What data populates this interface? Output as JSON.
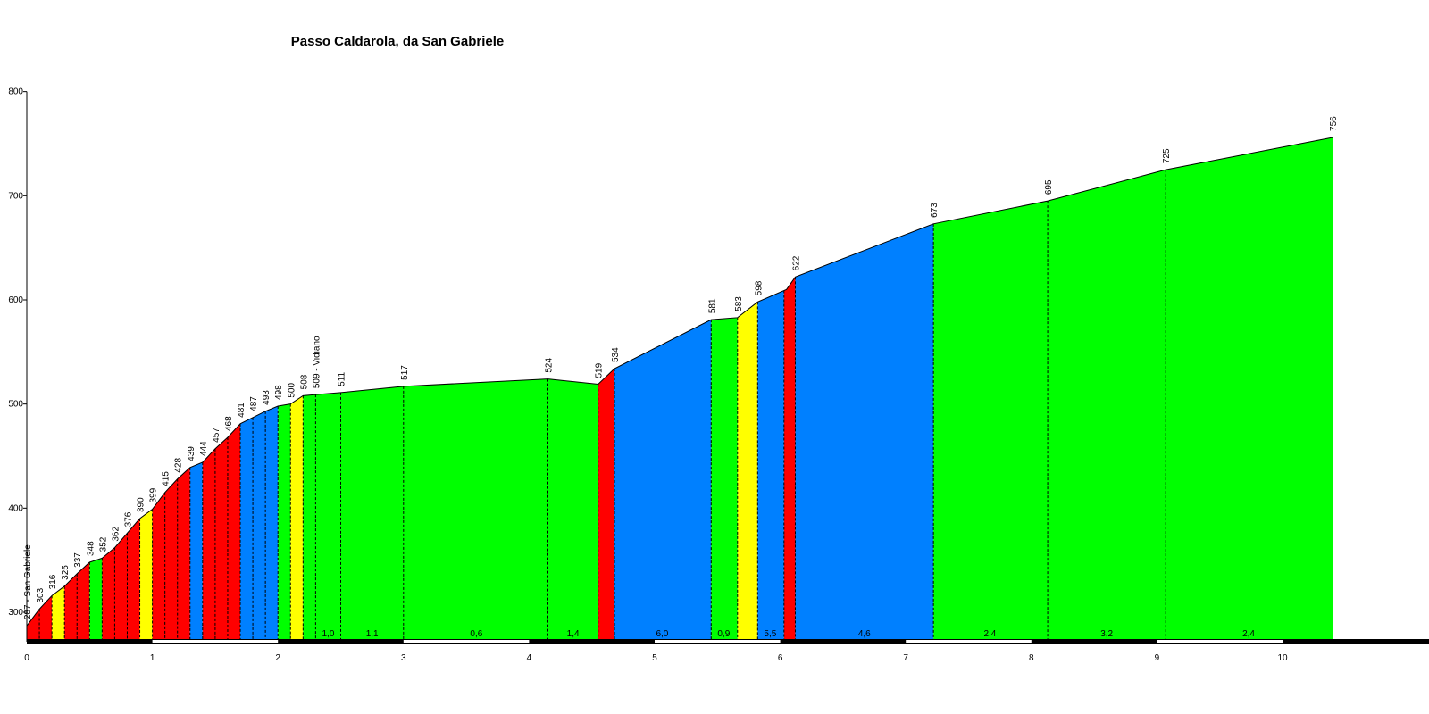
{
  "chart_data": {
    "type": "area",
    "title": "Passo Caldarola, da San Gabriele",
    "xlabel": "",
    "ylabel": "",
    "xlim": [
      0,
      11
    ],
    "ylim": [
      270,
      800
    ],
    "x_ticks": [
      0,
      1,
      2,
      3,
      4,
      5,
      6,
      7,
      8,
      9,
      10
    ],
    "y_ticks": [
      300,
      400,
      500,
      600,
      700,
      800
    ],
    "colors": {
      "red": "#ff0000",
      "yellow": "#ffff00",
      "green": "#00ff00",
      "blue": "#0080ff"
    },
    "profile_points": [
      {
        "x": 0.0,
        "y": 287,
        "label": "287 - San Gabriele"
      },
      {
        "x": 0.1,
        "y": 303,
        "label": "303"
      },
      {
        "x": 0.2,
        "y": 316,
        "label": "316"
      },
      {
        "x": 0.3,
        "y": 325,
        "label": "325"
      },
      {
        "x": 0.4,
        "y": 337,
        "label": "337"
      },
      {
        "x": 0.5,
        "y": 348,
        "label": "348"
      },
      {
        "x": 0.6,
        "y": 352,
        "label": "352"
      },
      {
        "x": 0.7,
        "y": 362,
        "label": "362"
      },
      {
        "x": 0.8,
        "y": 376,
        "label": "376"
      },
      {
        "x": 0.9,
        "y": 390,
        "label": "390"
      },
      {
        "x": 1.0,
        "y": 399,
        "label": "399"
      },
      {
        "x": 1.1,
        "y": 415,
        "label": "415"
      },
      {
        "x": 1.2,
        "y": 428,
        "label": "428"
      },
      {
        "x": 1.3,
        "y": 439,
        "label": "439"
      },
      {
        "x": 1.4,
        "y": 444,
        "label": "444"
      },
      {
        "x": 1.5,
        "y": 457,
        "label": "457"
      },
      {
        "x": 1.6,
        "y": 468,
        "label": "468"
      },
      {
        "x": 1.7,
        "y": 481,
        "label": "481"
      },
      {
        "x": 1.8,
        "y": 487,
        "label": "487"
      },
      {
        "x": 1.9,
        "y": 493,
        "label": "493"
      },
      {
        "x": 2.0,
        "y": 498,
        "label": "498"
      },
      {
        "x": 2.1,
        "y": 500,
        "label": "500"
      },
      {
        "x": 2.2,
        "y": 508,
        "label": "508"
      },
      {
        "x": 2.3,
        "y": 509,
        "label": "509 - Vidiano"
      },
      {
        "x": 2.5,
        "y": 511,
        "label": "511"
      },
      {
        "x": 3.0,
        "y": 517,
        "label": "517"
      },
      {
        "x": 4.15,
        "y": 524,
        "label": "524"
      },
      {
        "x": 4.55,
        "y": 519,
        "label": "519"
      },
      {
        "x": 4.68,
        "y": 534,
        "label": "534"
      },
      {
        "x": 5.45,
        "y": 581,
        "label": "581"
      },
      {
        "x": 5.66,
        "y": 583,
        "label": "583"
      },
      {
        "x": 5.82,
        "y": 598,
        "label": "598"
      },
      {
        "x": 6.05,
        "y": 610,
        "label": ""
      },
      {
        "x": 6.12,
        "y": 622,
        "label": "622"
      },
      {
        "x": 7.22,
        "y": 673,
        "label": "673"
      },
      {
        "x": 8.13,
        "y": 695,
        "label": "695"
      },
      {
        "x": 9.07,
        "y": 725,
        "label": "725"
      },
      {
        "x": 10.4,
        "y": 756,
        "label": "756"
      }
    ],
    "segments": [
      {
        "x0": 0.0,
        "x1": 0.2,
        "color": "red"
      },
      {
        "x0": 0.2,
        "x1": 0.3,
        "color": "yellow"
      },
      {
        "x0": 0.3,
        "x1": 0.5,
        "color": "red"
      },
      {
        "x0": 0.5,
        "x1": 0.6,
        "color": "green"
      },
      {
        "x0": 0.6,
        "x1": 0.9,
        "color": "red"
      },
      {
        "x0": 0.9,
        "x1": 1.0,
        "color": "yellow"
      },
      {
        "x0": 1.0,
        "x1": 1.3,
        "color": "red"
      },
      {
        "x0": 1.3,
        "x1": 1.4,
        "color": "blue"
      },
      {
        "x0": 1.4,
        "x1": 1.7,
        "color": "red"
      },
      {
        "x0": 1.7,
        "x1": 2.0,
        "color": "blue"
      },
      {
        "x0": 2.0,
        "x1": 2.1,
        "color": "green"
      },
      {
        "x0": 2.1,
        "x1": 2.2,
        "color": "yellow"
      },
      {
        "x0": 2.2,
        "x1": 4.55,
        "color": "green"
      },
      {
        "x0": 4.55,
        "x1": 4.68,
        "color": "red"
      },
      {
        "x0": 4.68,
        "x1": 5.45,
        "color": "blue"
      },
      {
        "x0": 5.45,
        "x1": 5.66,
        "color": "green"
      },
      {
        "x0": 5.66,
        "x1": 5.82,
        "color": "yellow"
      },
      {
        "x0": 5.82,
        "x1": 6.03,
        "color": "blue"
      },
      {
        "x0": 6.03,
        "x1": 6.12,
        "color": "red"
      },
      {
        "x0": 6.12,
        "x1": 7.22,
        "color": "blue"
      },
      {
        "x0": 7.22,
        "x1": 10.4,
        "color": "green"
      }
    ],
    "km_dividers": [
      0.1,
      0.2,
      0.3,
      0.4,
      0.5,
      0.6,
      0.7,
      0.8,
      0.9,
      1.0,
      1.1,
      1.2,
      1.3,
      1.4,
      1.5,
      1.6,
      1.7,
      1.8,
      1.9,
      2.0,
      2.1,
      2.2,
      2.3,
      2.5,
      3.0,
      4.15,
      4.55,
      4.68,
      5.45,
      5.66,
      5.82,
      6.03,
      6.12,
      7.22,
      8.13,
      9.07
    ],
    "gradient_labels": [
      {
        "x": 2.4,
        "text": "1,0"
      },
      {
        "x": 2.75,
        "text": "1,1"
      },
      {
        "x": 3.58,
        "text": "0,6"
      },
      {
        "x": 4.35,
        "text": "1,4"
      },
      {
        "x": 5.06,
        "text": "6,0"
      },
      {
        "x": 5.55,
        "text": "0,9"
      },
      {
        "x": 5.92,
        "text": "5,5"
      },
      {
        "x": 6.67,
        "text": "4,6"
      },
      {
        "x": 7.67,
        "text": "2,4"
      },
      {
        "x": 8.6,
        "text": "3,2"
      },
      {
        "x": 9.73,
        "text": "2,4"
      }
    ]
  }
}
